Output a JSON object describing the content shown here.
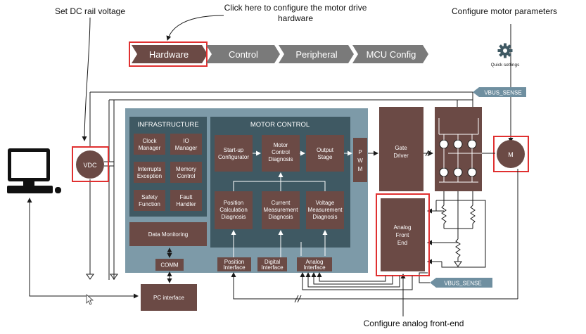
{
  "annotations": {
    "dc_rail": "Set DC rail voltage",
    "hardware_line1": "Click here to configure the motor drive",
    "hardware_line2": "hardware",
    "motor_params": "Configure motor  parameters",
    "afe": "Configure analog front-end"
  },
  "nav_tabs": [
    {
      "label": "Hardware",
      "selected": true
    },
    {
      "label": "Control",
      "selected": false
    },
    {
      "label": "Peripheral",
      "selected": false
    },
    {
      "label": "MCU Config",
      "selected": false
    }
  ],
  "quick_settings": {
    "label": "Quick settings",
    "icon": "gear-icon"
  },
  "vbus_top": "VBUS_SENSE",
  "vbus_bottom": "VBUS_SENSE",
  "vdc": "VDC",
  "motor": "M",
  "infrastructure": {
    "title": "INFRASTRUCTURE",
    "cells": [
      [
        "Clock",
        "Manager"
      ],
      [
        "IO",
        "Manager"
      ],
      [
        "Interrupts",
        "Exception"
      ],
      [
        "Memory",
        "Control"
      ],
      [
        "Safety",
        "Function"
      ],
      [
        "Fault",
        "Handler"
      ]
    ],
    "data_monitoring": "Data Monitoring"
  },
  "motor_control": {
    "title": "MOTOR CONTROL",
    "startup": [
      "Start-up",
      "Configurator"
    ],
    "diag": [
      "Motor",
      "Control",
      "Diagnosis"
    ],
    "output": [
      "Output",
      "Stage"
    ],
    "position": [
      "Position",
      "Calculation",
      "Diagnosis"
    ],
    "current": [
      "Current",
      "Measurement",
      "Diagnosis"
    ],
    "voltage": [
      "Voltage",
      "Measurement",
      "Diagnosis"
    ]
  },
  "pwm": [
    "P",
    "W",
    "M"
  ],
  "gate_driver": [
    "Gate",
    "Driver"
  ],
  "analog_front_end": [
    "Analog",
    "Front",
    "End"
  ],
  "comm": "COMM",
  "interfaces": {
    "position": [
      "Position",
      "Interface"
    ],
    "digital": [
      "Digital",
      "Interface"
    ],
    "analog": [
      "Analog",
      "Interface"
    ]
  },
  "pc_interface": "PC interface",
  "colors": {
    "block": "#6b4a45",
    "panel": "#7d9aa8",
    "inner_panel": "#3f5963",
    "nav_tab": "#7a7a7a",
    "nav_selected": "#6b4a45",
    "highlight": "#e03030",
    "vbus_tag": "#6f8fa0"
  }
}
